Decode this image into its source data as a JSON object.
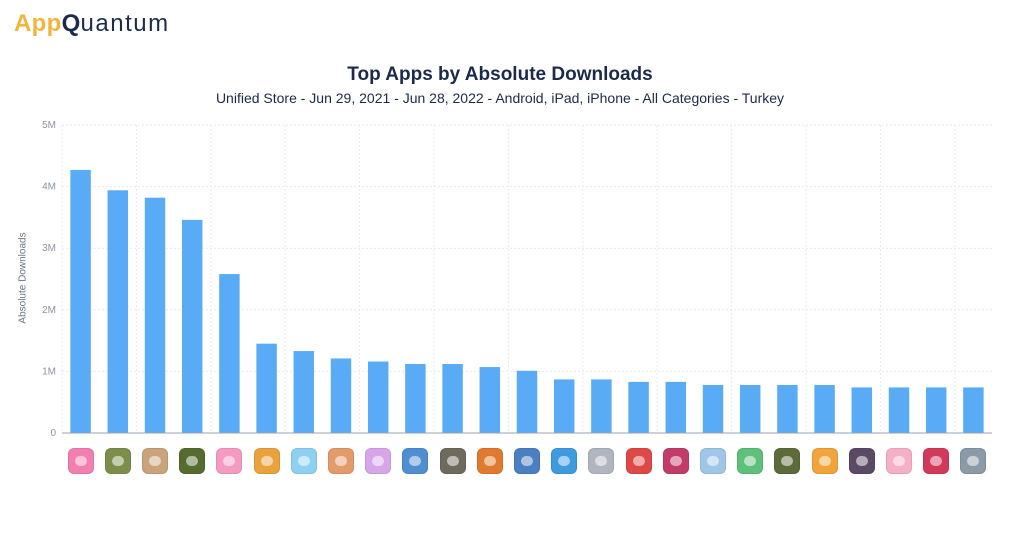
{
  "brand": {
    "app": "App",
    "q": "Q",
    "rest": "uantum"
  },
  "chart_data": {
    "type": "bar",
    "title": "Top Apps by Absolute Downloads",
    "subtitle": "Unified Store - Jun 29, 2021 - Jun 28, 2022 - Android, iPad, iPhone - All Categories - Turkey",
    "xlabel": "",
    "ylabel": "Absolute Downloads",
    "ylim": [
      0,
      5000000
    ],
    "yticks": [
      0,
      1000000,
      2000000,
      3000000,
      4000000,
      5000000
    ],
    "ytick_labels": [
      "0",
      "1M",
      "2M",
      "3M",
      "4M",
      "5M"
    ],
    "grid": true,
    "bar_color": "#5aabf5",
    "values": [
      4270000,
      3940000,
      3820000,
      3460000,
      2580000,
      1450000,
      1330000,
      1210000,
      1160000,
      1120000,
      1120000,
      1070000,
      1010000,
      870000,
      870000,
      830000,
      830000,
      780000,
      780000,
      780000,
      780000,
      740000,
      740000,
      740000,
      740000
    ],
    "category_icons": [
      {
        "name": "app-icon-1",
        "color": "#f27fb0"
      },
      {
        "name": "app-icon-2",
        "color": "#7b8f4a"
      },
      {
        "name": "app-icon-3",
        "color": "#c9a47a"
      },
      {
        "name": "app-icon-4",
        "color": "#556b2f"
      },
      {
        "name": "app-icon-5",
        "color": "#f59ac0"
      },
      {
        "name": "app-icon-6",
        "color": "#e8a33d"
      },
      {
        "name": "app-icon-7",
        "color": "#8fd0f0"
      },
      {
        "name": "app-icon-8",
        "color": "#e39b6a"
      },
      {
        "name": "app-icon-9",
        "color": "#d6a6e8"
      },
      {
        "name": "app-icon-10",
        "color": "#4f8fd1"
      },
      {
        "name": "app-icon-11",
        "color": "#6f6a5e"
      },
      {
        "name": "app-icon-12",
        "color": "#e07a2e"
      },
      {
        "name": "app-icon-13",
        "color": "#4a7fc2"
      },
      {
        "name": "app-icon-14",
        "color": "#3f9be0"
      },
      {
        "name": "app-icon-15",
        "color": "#b0b6bf"
      },
      {
        "name": "app-icon-16",
        "color": "#e04848"
      },
      {
        "name": "app-icon-17",
        "color": "#c23c6a"
      },
      {
        "name": "app-icon-18",
        "color": "#9fc6e6"
      },
      {
        "name": "app-icon-19",
        "color": "#5ec07a"
      },
      {
        "name": "app-icon-20",
        "color": "#5d6b3a"
      },
      {
        "name": "app-icon-21",
        "color": "#f0a43a"
      },
      {
        "name": "app-icon-22",
        "color": "#5a4a66"
      },
      {
        "name": "app-icon-23",
        "color": "#f5b0c8"
      },
      {
        "name": "app-icon-24",
        "color": "#d23a5c"
      },
      {
        "name": "app-icon-25",
        "color": "#8a9aa8"
      }
    ]
  }
}
